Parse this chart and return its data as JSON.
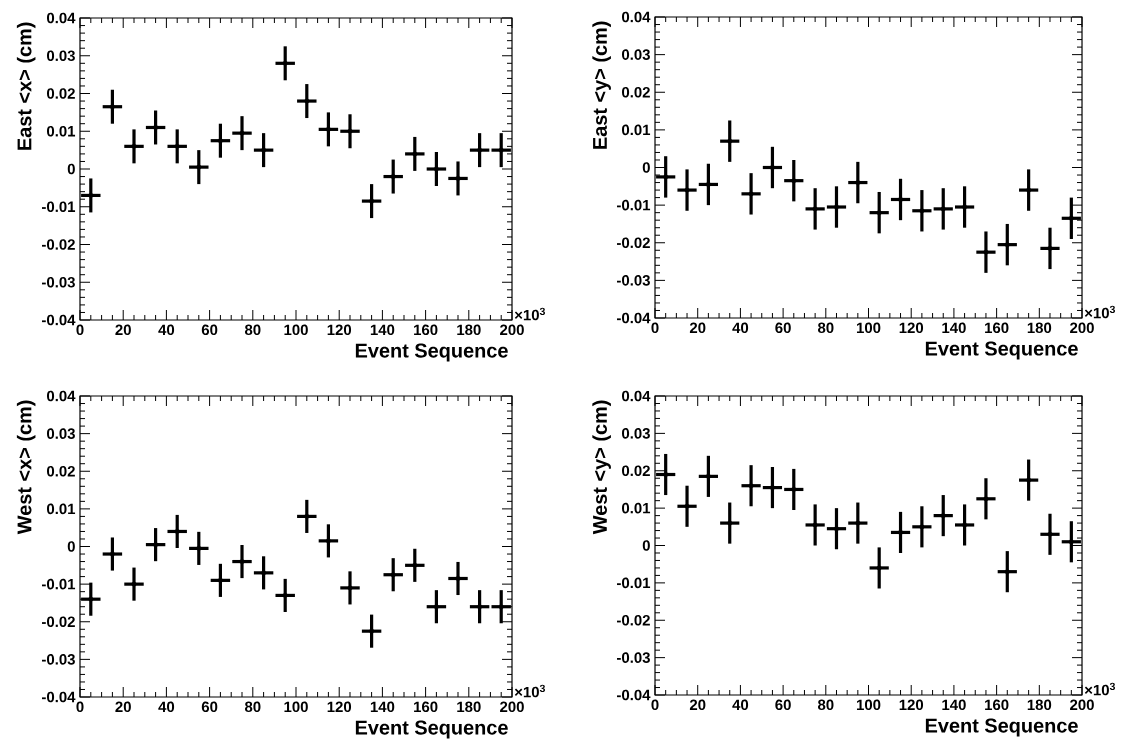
{
  "chart_data": [
    {
      "type": "scatter",
      "ylabel": "East <x> (cm)",
      "xlabel": "Event Sequence",
      "annotations": [
        "×10$^{3}$"
      ],
      "marker": "square",
      "color": "#000000",
      "grid": false,
      "x": [
        5,
        15,
        25,
        35,
        45,
        55,
        65,
        75,
        85,
        95,
        105,
        115,
        125,
        135,
        145,
        155,
        165,
        175,
        185,
        195
      ],
      "values": [
        -0.007,
        0.0165,
        0.006,
        0.011,
        0.006,
        0.0005,
        0.0075,
        0.0095,
        0.005,
        0.028,
        0.018,
        0.0105,
        0.01,
        -0.0085,
        -0.002,
        0.004,
        0.0,
        -0.0025,
        0.005,
        0.005
      ],
      "errors": [
        0.0045,
        0.0045,
        0.0045,
        0.0045,
        0.0045,
        0.0045,
        0.0045,
        0.0045,
        0.0045,
        0.0045,
        0.0045,
        0.0045,
        0.0045,
        0.0045,
        0.0045,
        0.0045,
        0.0045,
        0.0045,
        0.0045,
        0.0045
      ],
      "xerrors": [
        4.5,
        4.5,
        4.5,
        4.5,
        4.5,
        4.5,
        4.5,
        4.5,
        4.5,
        4.5,
        4.5,
        4.5,
        4.5,
        4.5,
        4.5,
        4.5,
        4.5,
        4.5,
        4.5,
        4.5
      ],
      "xlim": [
        0,
        200
      ],
      "xticks": [
        0,
        20,
        40,
        60,
        80,
        100,
        120,
        140,
        160,
        180,
        200
      ],
      "ylim": [
        -0.04,
        0.04
      ],
      "yticks": [
        -0.04,
        -0.03,
        -0.02,
        -0.01,
        0,
        0.01,
        0.02,
        0.03,
        0.04
      ]
    },
    {
      "type": "scatter",
      "ylabel": "East <y> (cm)",
      "xlabel": "Event Sequence",
      "annotations": [
        "×10$^{3}$"
      ],
      "marker": "square",
      "color": "#000000",
      "grid": false,
      "x": [
        5,
        15,
        25,
        35,
        45,
        55,
        65,
        75,
        85,
        95,
        105,
        115,
        125,
        135,
        145,
        155,
        165,
        175,
        185,
        195
      ],
      "values": [
        -0.0025,
        -0.006,
        -0.0045,
        0.007,
        -0.007,
        0.0,
        -0.0035,
        -0.011,
        -0.0105,
        -0.004,
        -0.012,
        -0.0085,
        -0.0115,
        -0.011,
        -0.0105,
        -0.0225,
        -0.0205,
        -0.006,
        -0.0215,
        -0.0135
      ],
      "errors": [
        0.0055,
        0.0055,
        0.0055,
        0.0055,
        0.0055,
        0.0055,
        0.0055,
        0.0055,
        0.0055,
        0.0055,
        0.0055,
        0.0055,
        0.0055,
        0.0055,
        0.0055,
        0.0055,
        0.0055,
        0.0055,
        0.0055,
        0.0055
      ],
      "xerrors": [
        4.5,
        4.5,
        4.5,
        4.5,
        4.5,
        4.5,
        4.5,
        4.5,
        4.5,
        4.5,
        4.5,
        4.5,
        4.5,
        4.5,
        4.5,
        4.5,
        4.5,
        4.5,
        4.5,
        4.5
      ],
      "xlim": [
        0,
        200
      ],
      "xticks": [
        0,
        20,
        40,
        60,
        80,
        100,
        120,
        140,
        160,
        180,
        200
      ],
      "ylim": [
        -0.04,
        0.04
      ],
      "yticks": [
        -0.04,
        -0.03,
        -0.02,
        -0.01,
        0,
        0.01,
        0.02,
        0.03,
        0.04
      ]
    },
    {
      "type": "scatter",
      "ylabel": "West <x> (cm)",
      "xlabel": "Event Sequence",
      "annotations": [
        "×10$^{3}$"
      ],
      "marker": "square",
      "color": "#000000",
      "grid": false,
      "x": [
        5,
        15,
        25,
        35,
        45,
        55,
        65,
        75,
        85,
        95,
        105,
        115,
        125,
        135,
        145,
        155,
        165,
        175,
        185,
        195
      ],
      "values": [
        -0.014,
        -0.002,
        -0.01,
        0.0005,
        0.004,
        -0.0005,
        -0.009,
        -0.004,
        -0.007,
        -0.013,
        0.008,
        0.0015,
        -0.011,
        -0.0225,
        -0.0075,
        -0.005,
        -0.016,
        -0.0085,
        -0.016,
        -0.016
      ],
      "errors": [
        0.0044,
        0.0044,
        0.0044,
        0.0044,
        0.0044,
        0.0044,
        0.0044,
        0.0044,
        0.0044,
        0.0044,
        0.0044,
        0.0044,
        0.0044,
        0.0044,
        0.0044,
        0.0044,
        0.0044,
        0.0044,
        0.0044,
        0.0044
      ],
      "xerrors": [
        4.5,
        4.5,
        4.5,
        4.5,
        4.5,
        4.5,
        4.5,
        4.5,
        4.5,
        4.5,
        4.5,
        4.5,
        4.5,
        4.5,
        4.5,
        4.5,
        4.5,
        4.5,
        4.5,
        4.5
      ],
      "xlim": [
        0,
        200
      ],
      "xticks": [
        0,
        20,
        40,
        60,
        80,
        100,
        120,
        140,
        160,
        180,
        200
      ],
      "ylim": [
        -0.04,
        0.04
      ],
      "yticks": [
        -0.04,
        -0.03,
        -0.02,
        -0.01,
        0,
        0.01,
        0.02,
        0.03,
        0.04
      ]
    },
    {
      "type": "scatter",
      "ylabel": "West <y> (cm)",
      "xlabel": "Event Sequence",
      "annotations": [
        "×10$^{3}$"
      ],
      "marker": "square",
      "color": "#000000",
      "grid": false,
      "x": [
        5,
        15,
        25,
        35,
        45,
        55,
        65,
        75,
        85,
        95,
        105,
        115,
        125,
        135,
        145,
        155,
        165,
        175,
        185,
        195
      ],
      "values": [
        0.019,
        0.0105,
        0.0185,
        0.006,
        0.016,
        0.0155,
        0.015,
        0.0055,
        0.0045,
        0.006,
        -0.006,
        0.0035,
        0.005,
        0.008,
        0.0055,
        0.0125,
        -0.007,
        0.0175,
        0.003,
        0.001
      ],
      "errors": [
        0.0055,
        0.0055,
        0.0055,
        0.0055,
        0.0055,
        0.0055,
        0.0055,
        0.0055,
        0.0055,
        0.0055,
        0.0055,
        0.0055,
        0.0055,
        0.0055,
        0.0055,
        0.0055,
        0.0055,
        0.0055,
        0.0055,
        0.0055
      ],
      "xerrors": [
        4.5,
        4.5,
        4.5,
        4.5,
        4.5,
        4.5,
        4.5,
        4.5,
        4.5,
        4.5,
        4.5,
        4.5,
        4.5,
        4.5,
        4.5,
        4.5,
        4.5,
        4.5,
        4.5,
        4.5
      ],
      "xlim": [
        0,
        200
      ],
      "xticks": [
        0,
        20,
        40,
        60,
        80,
        100,
        120,
        140,
        160,
        180,
        200
      ],
      "ylim": [
        -0.04,
        0.04
      ],
      "yticks": [
        -0.04,
        -0.03,
        -0.02,
        -0.01,
        0,
        0.01,
        0.02,
        0.03,
        0.04
      ]
    }
  ]
}
